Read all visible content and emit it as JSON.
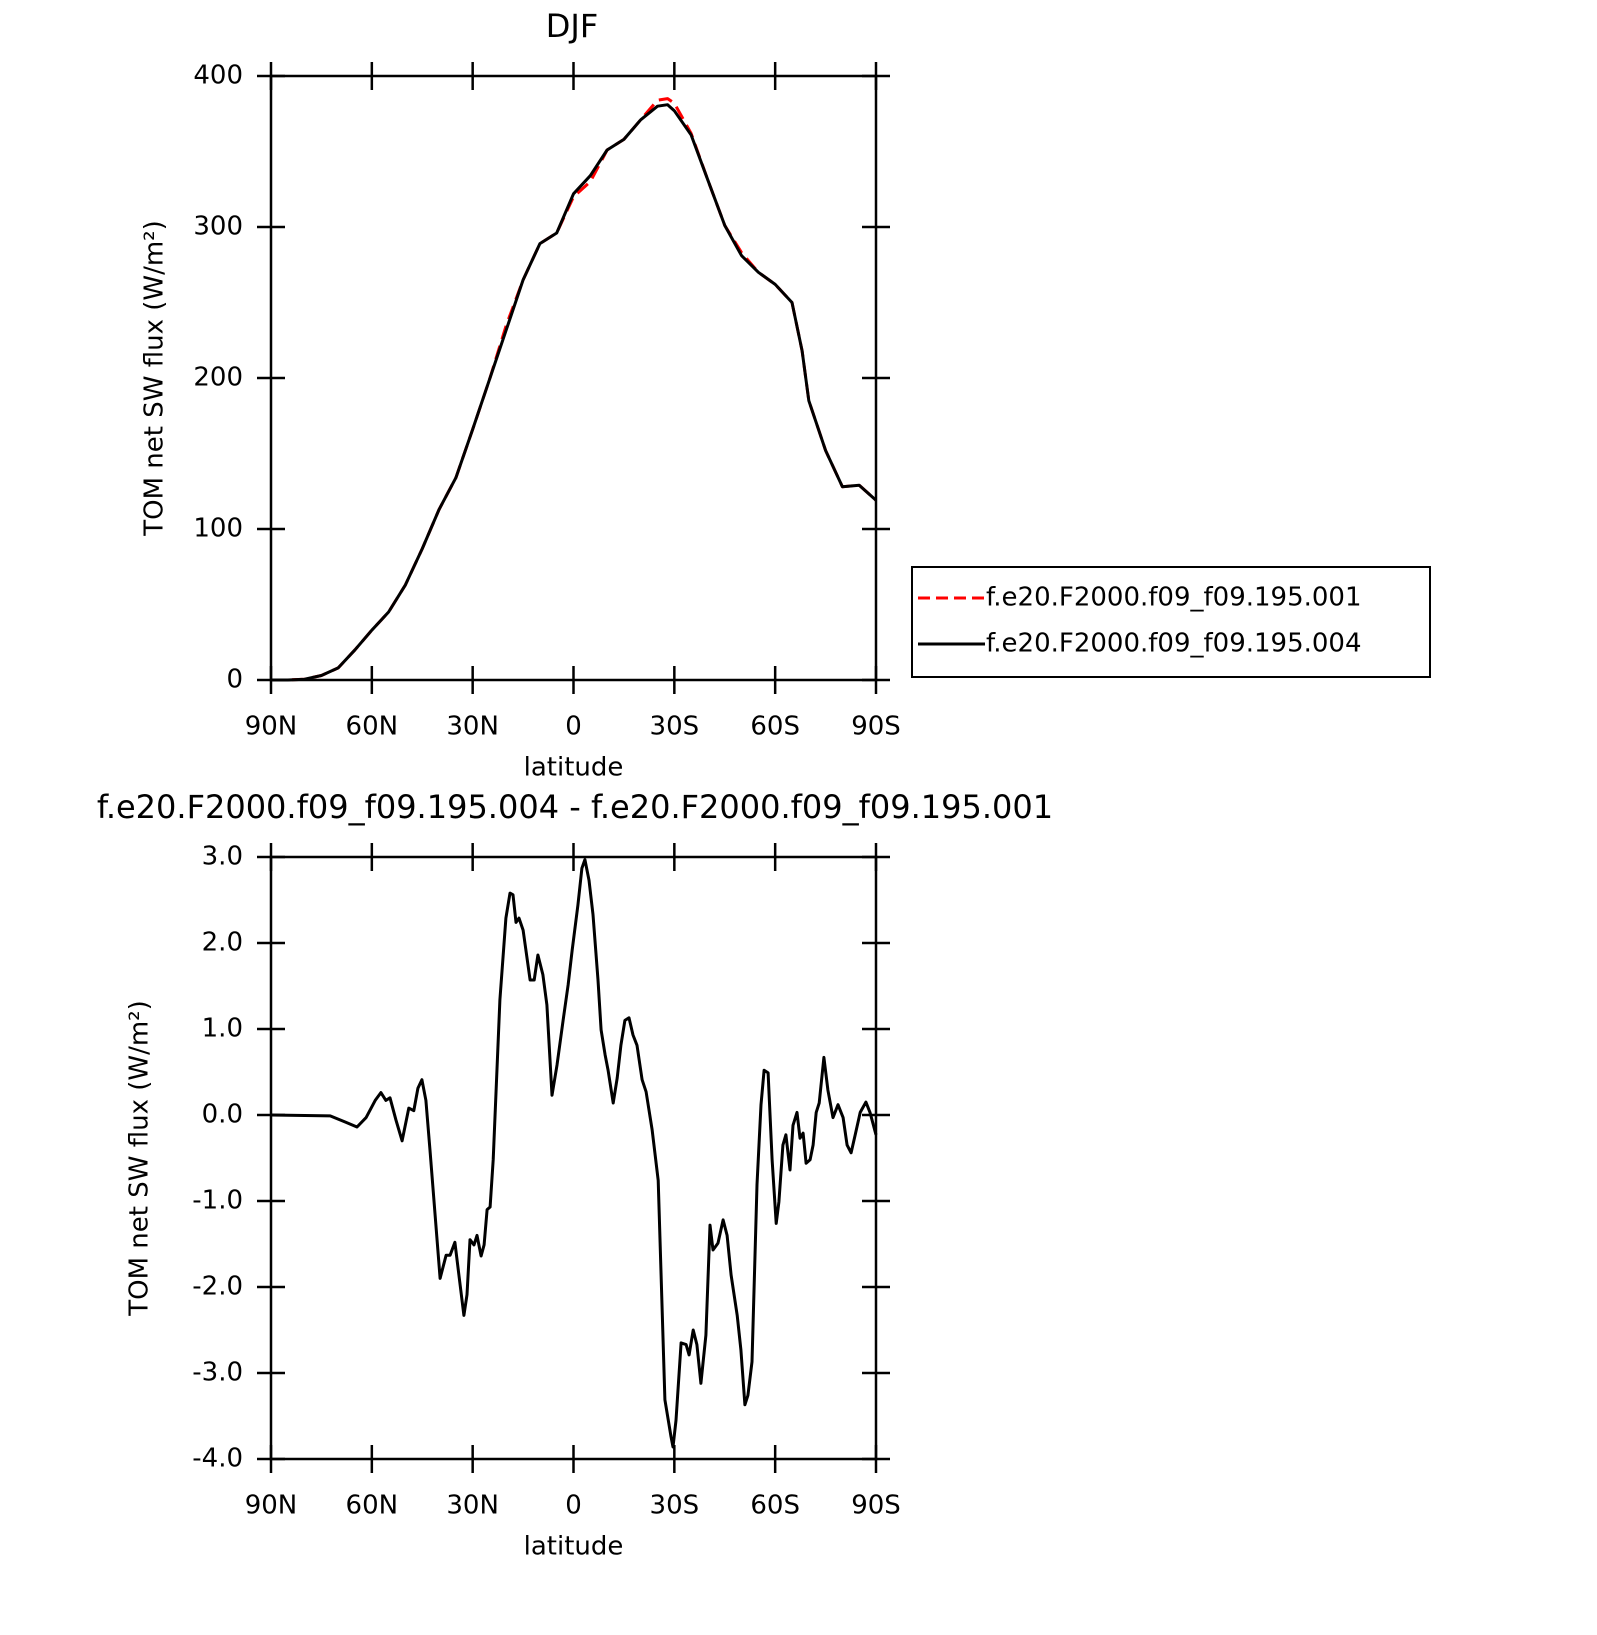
{
  "chart_data": [
    {
      "type": "line",
      "title": "DJF",
      "xlabel": "latitude",
      "ylabel": "TOM net SW flux (W/m²)",
      "x": [
        90,
        85,
        80,
        75,
        70,
        65,
        60,
        55,
        50,
        45,
        40,
        35,
        30,
        25,
        20,
        15,
        10,
        5,
        0,
        -5,
        -10,
        -15,
        -20,
        -25,
        -28,
        -30,
        -35,
        -40,
        -45,
        -50,
        -55,
        -60,
        -65,
        -68,
        -70,
        -75,
        -80,
        -85,
        -90
      ],
      "series": [
        {
          "name": "f.e20.F2000.f09_f09.195.001",
          "color": "#ff0000",
          "linestyle": "dashed",
          "values": [
            0,
            0,
            0.5,
            3,
            8,
            20,
            33,
            45,
            63,
            87,
            113,
            134,
            166,
            199,
            235,
            265,
            289,
            296,
            320,
            330,
            351,
            358,
            371,
            384,
            385,
            382,
            362,
            331,
            301,
            283,
            270,
            262,
            250,
            218,
            185,
            152,
            128,
            129,
            119
          ]
        },
        {
          "name": "f.e20.F2000.f09_f09.195.004",
          "color": "#000000",
          "linestyle": "solid",
          "values": [
            0,
            0,
            0.5,
            3,
            8,
            20,
            33,
            45,
            63,
            87,
            113,
            134,
            166,
            199,
            232,
            265,
            289,
            296,
            322,
            334,
            351,
            358,
            371,
            380,
            381,
            377,
            361,
            331,
            301,
            281,
            270,
            262,
            250,
            218,
            185,
            152,
            128,
            129,
            119
          ]
        }
      ],
      "xlim": [
        90,
        -90
      ],
      "xticks": [
        {
          "value": 90,
          "label": "90N"
        },
        {
          "value": 60,
          "label": "60N"
        },
        {
          "value": 30,
          "label": "30N"
        },
        0,
        {
          "value": -30,
          "label": "30S"
        },
        {
          "value": -60,
          "label": "60S"
        },
        {
          "value": -90,
          "label": "90S"
        }
      ],
      "ylim": [
        0,
        400
      ],
      "yticks": [
        0,
        100,
        200,
        300,
        400
      ],
      "legend": "outside-right"
    },
    {
      "type": "line",
      "title": "f.e20.F2000.f09_f09.195.004 - f.e20.F2000.f09_f09.195.001",
      "xlabel": "latitude",
      "ylabel": "TOM net SW flux (W/m²)",
      "x": [
        90,
        72.4,
        68,
        64.4,
        61.7,
        59,
        57.3,
        55.8,
        54.6,
        52.8,
        51,
        49,
        47.5,
        46.3,
        45.1,
        43.9,
        42.7,
        39.7,
        37.9,
        36.7,
        35.3,
        34.1,
        32.6,
        31.7,
        30.8,
        29.6,
        28.7,
        27.5,
        26.6,
        25.7,
        24.8,
        23.9,
        21.9,
        20.1,
        18.9,
        18,
        17.1,
        16.2,
        15,
        12.9,
        11.7,
        10.6,
        9.1,
        7.9,
        6.4,
        4.9,
        3.1,
        1.6,
        0.4,
        -1.3,
        -2.5,
        -3.4,
        -4.6,
        -5.8,
        -7.3,
        -8.2,
        -9.4,
        -10.3,
        -11.8,
        -13,
        -14.1,
        -15.3,
        -16.5,
        -17.7,
        -18.9,
        -20.4,
        -21.6,
        -23.4,
        -25.2,
        -27.2,
        -29,
        -29.6,
        -30.5,
        -32,
        -33.5,
        -34.4,
        -35.6,
        -36.7,
        -37.9,
        -39.4,
        -40.6,
        -41.5,
        -43,
        -44.5,
        -45.7,
        -46.9,
        -48.7,
        -49.8,
        -51,
        -51.9,
        -53.1,
        -54.6,
        -55.8,
        -56.7,
        -57.9,
        -59.1,
        -60.3,
        -61.1,
        -62.3,
        -63.2,
        -64.4,
        -65.3,
        -66.5,
        -67.4,
        -68.3,
        -69.2,
        -70.4,
        -71.3,
        -72.2,
        -73.1,
        -74.5,
        -75.7,
        -77.2,
        -78.7,
        -80.2,
        -81.4,
        -82.6,
        -83.8,
        -85.3,
        -87,
        -88.2,
        -90
      ],
      "color": "#000000",
      "values": [
        0,
        -0.01,
        -0.08,
        -0.14,
        -0.03,
        0.17,
        0.26,
        0.17,
        0.2,
        -0.06,
        -0.3,
        0.08,
        0.05,
        0.31,
        0.41,
        0.17,
        -0.41,
        -1.9,
        -1.63,
        -1.63,
        -1.48,
        -1.86,
        -2.33,
        -2.09,
        -1.45,
        -1.51,
        -1.4,
        -1.64,
        -1.51,
        -1.1,
        -1.07,
        -0.52,
        1.34,
        2.29,
        2.58,
        2.56,
        2.24,
        2.29,
        2.15,
        1.57,
        1.57,
        1.86,
        1.63,
        1.28,
        0.23,
        0.58,
        1.1,
        1.51,
        1.92,
        2.44,
        2.87,
        2.97,
        2.73,
        2.33,
        1.57,
        0.99,
        0.7,
        0.52,
        0.14,
        0.43,
        0.81,
        1.1,
        1.13,
        0.93,
        0.81,
        0.41,
        0.27,
        -0.17,
        -0.76,
        -3.31,
        -3.74,
        -3.86,
        -3.55,
        -2.65,
        -2.67,
        -2.79,
        -2.5,
        -2.67,
        -3.12,
        -2.56,
        -1.28,
        -1.57,
        -1.49,
        -1.22,
        -1.4,
        -1.86,
        -2.33,
        -2.73,
        -3.37,
        -3.26,
        -2.87,
        -0.81,
        0.12,
        0.52,
        0.49,
        -0.52,
        -1.26,
        -1.01,
        -0.35,
        -0.23,
        -0.64,
        -0.12,
        0.03,
        -0.27,
        -0.21,
        -0.56,
        -0.52,
        -0.35,
        0.03,
        0.14,
        0.67,
        0.29,
        -0.03,
        0.12,
        -0.03,
        -0.35,
        -0.44,
        -0.23,
        0.03,
        0.15,
        0.03,
        -0.23
      ],
      "xlim": [
        90,
        -90
      ],
      "xticks": [
        {
          "value": 90,
          "label": "90N"
        },
        {
          "value": 60,
          "label": "60N"
        },
        {
          "value": 30,
          "label": "30N"
        },
        0,
        {
          "value": -30,
          "label": "30S"
        },
        {
          "value": -60,
          "label": "60S"
        },
        {
          "value": -90,
          "label": "90S"
        }
      ],
      "ylim": [
        -4,
        3
      ],
      "yticks": [
        {
          "value": -4,
          "label": "-4.0"
        },
        {
          "value": -3,
          "label": "-3.0"
        },
        {
          "value": -2,
          "label": "-2.0"
        },
        {
          "value": -1,
          "label": "-1.0"
        },
        {
          "value": 0,
          "label": "0.0"
        },
        {
          "value": 1,
          "label": "1.0"
        },
        {
          "value": 2,
          "label": "2.0"
        },
        {
          "value": 3,
          "label": "3.0"
        }
      ]
    }
  ]
}
